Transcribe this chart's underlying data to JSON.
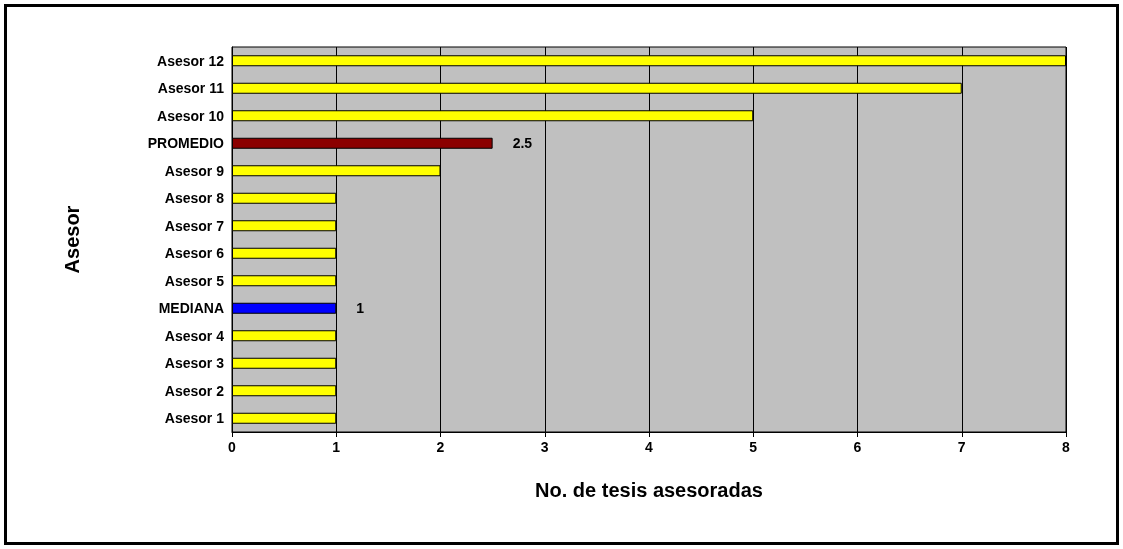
{
  "chart_data": {
    "type": "bar",
    "orientation": "horizontal",
    "xlabel": "No. de tesis asesoradas",
    "ylabel": "Asesor",
    "categories": [
      "Asesor 12",
      "Asesor 11",
      "Asesor 10",
      "PROMEDIO",
      "Asesor 9",
      "Asesor 8",
      "Asesor 7",
      "Asesor 6",
      "Asesor 5",
      "MEDIANA",
      "Asesor 4",
      "Asesor 3",
      "Asesor 2",
      "Asesor 1"
    ],
    "values": [
      8,
      7,
      5,
      2.5,
      2,
      1,
      1,
      1,
      1,
      1,
      1,
      1,
      1,
      1
    ],
    "colors": [
      "#ffff00",
      "#ffff00",
      "#ffff00",
      "#8b0000",
      "#ffff00",
      "#ffff00",
      "#ffff00",
      "#ffff00",
      "#ffff00",
      "#0000ff",
      "#ffff00",
      "#ffff00",
      "#ffff00",
      "#ffff00"
    ],
    "value_labels": [
      null,
      null,
      null,
      "2.5",
      null,
      null,
      null,
      null,
      null,
      "1",
      null,
      null,
      null,
      null
    ],
    "xlim": [
      0,
      8
    ],
    "xticks": [
      0,
      1,
      2,
      3,
      4,
      5,
      6,
      7,
      8
    ],
    "grid": "x"
  }
}
